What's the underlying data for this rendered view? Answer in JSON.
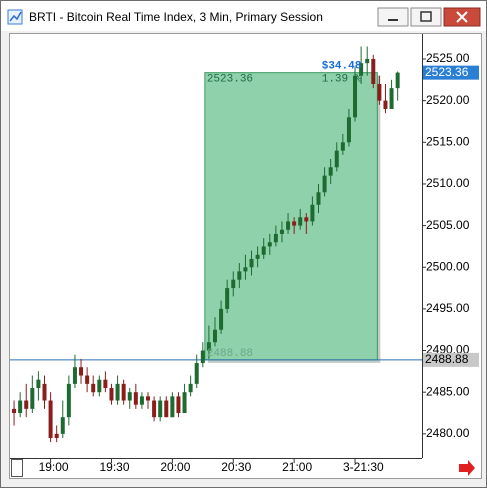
{
  "window": {
    "title": "BRTI - Bitcoin Real Time Index, 3 Min, Primary Session"
  },
  "chart_data": {
    "type": "candlestick",
    "candles": {
      "x": [
        1122,
        1125,
        1128,
        1131,
        1134,
        1137,
        1140,
        1143,
        1146,
        1149,
        1152,
        1155,
        1158,
        1161,
        1164,
        1167,
        1170,
        1173,
        1176,
        1179,
        1182,
        1185,
        1188,
        1191,
        1194,
        1197,
        1200,
        1203,
        1206,
        1209,
        1212,
        1215,
        1218,
        1221,
        1224,
        1227,
        1230,
        1233,
        1236,
        1239,
        1242,
        1245,
        1248,
        1251,
        1254,
        1257,
        1260,
        1263,
        1266,
        1269,
        1272,
        1275,
        1278,
        1281,
        1284,
        1287,
        1290,
        1293,
        1296,
        1299,
        1302,
        1305,
        1308,
        1311
      ],
      "open": [
        2483,
        2482.5,
        2484,
        2483,
        2485.5,
        2486,
        2484,
        2480,
        2480,
        2482,
        2486,
        2488,
        2487,
        2486,
        2485,
        2486.5,
        2485.5,
        2484,
        2486,
        2484,
        2485,
        2483.5,
        2484.5,
        2484,
        2482,
        2484,
        2482,
        2484.5,
        2482.5,
        2485,
        2486,
        2488.5,
        2490,
        2491,
        2492.5,
        2495,
        2497.5,
        2498.5,
        2499.5,
        2500,
        2501,
        2501.5,
        2502.5,
        2503,
        2504,
        2504.5,
        2505.5,
        2505,
        2506,
        2505.5,
        2507.5,
        2509,
        2511,
        2512,
        2514,
        2515,
        2518,
        2523,
        2524.5,
        2525,
        2522,
        2520,
        2519,
        2521.5
      ],
      "high": [
        2484,
        2485,
        2486,
        2487,
        2487.5,
        2487,
        2485,
        2481,
        2484,
        2487,
        2489.5,
        2489,
        2488,
        2487,
        2487,
        2487.5,
        2486,
        2487,
        2486.5,
        2485.5,
        2486,
        2485,
        2485,
        2484.5,
        2484.5,
        2484.5,
        2485,
        2485,
        2486,
        2487,
        2489.5,
        2491,
        2493,
        2494,
        2496,
        2498.5,
        2499.5,
        2500.5,
        2501.5,
        2502,
        2502.5,
        2503.5,
        2504,
        2505,
        2505.5,
        2506.5,
        2506,
        2507,
        2506.5,
        2508.5,
        2510,
        2512,
        2513,
        2515,
        2516,
        2519,
        2524,
        2526.5,
        2526.5,
        2525.5,
        2523,
        2522,
        2522.5,
        2523.5
      ],
      "low": [
        2481,
        2482,
        2482,
        2482.5,
        2484,
        2483,
        2479,
        2479,
        2479.5,
        2481,
        2485.5,
        2486,
        2485,
        2484.5,
        2484.5,
        2485,
        2483.5,
        2483.5,
        2483.5,
        2483,
        2483,
        2483,
        2483,
        2481.5,
        2481.5,
        2482,
        2482,
        2482,
        2482.5,
        2484.5,
        2485.5,
        2488,
        2489,
        2490.5,
        2492,
        2494.5,
        2496.5,
        2497.5,
        2498.5,
        2499,
        2500,
        2501,
        2501.5,
        2502.5,
        2503,
        2504,
        2504,
        2504.5,
        2504,
        2505,
        2506.5,
        2508.5,
        2510,
        2511.5,
        2513.5,
        2514.5,
        2517.5,
        2522,
        2523,
        2521.5,
        2519.5,
        2518.5,
        2519,
        2520
      ],
      "close": [
        2482.5,
        2484,
        2483,
        2485.5,
        2486.5,
        2484,
        2479.5,
        2479.5,
        2482,
        2486,
        2488,
        2487,
        2486,
        2485,
        2486.5,
        2485.5,
        2484,
        2486,
        2484,
        2485,
        2483.5,
        2484.5,
        2484,
        2482,
        2484,
        2482,
        2484.5,
        2482.5,
        2485,
        2486,
        2488.5,
        2490,
        2491,
        2492.5,
        2495,
        2497.5,
        2498.5,
        2499.5,
        2500,
        2501,
        2501.5,
        2502.5,
        2503,
        2504,
        2504.5,
        2505.5,
        2505,
        2506,
        2505.5,
        2507.5,
        2509,
        2511,
        2512,
        2514,
        2515,
        2518,
        2523,
        2524.5,
        2525,
        2522,
        2520,
        2519,
        2521.5,
        2523.36
      ]
    },
    "up_color": "#1d6b30",
    "down_color": "#8c1d1d",
    "xlim": [
      1120,
      1323
    ],
    "xticks": [
      {
        "value": 1140,
        "label": "19:00"
      },
      {
        "value": 1170,
        "label": "19:30"
      },
      {
        "value": 1200,
        "label": "20:00"
      },
      {
        "value": 1230,
        "label": "20:30"
      },
      {
        "value": 1260,
        "label": "21:00"
      },
      {
        "value": 1290,
        "label": "3-21:30"
      }
    ],
    "ylim": [
      2477.1,
      2528.0
    ],
    "yticks": [
      {
        "value": 2480,
        "label": "2480.00"
      },
      {
        "value": 2485,
        "label": "2485.00"
      },
      {
        "value": 2490,
        "label": "2490.00"
      },
      {
        "value": 2495,
        "label": "2495.00"
      },
      {
        "value": 2500,
        "label": "2500.00"
      },
      {
        "value": 2505,
        "label": "2505.00"
      },
      {
        "value": 2510,
        "label": "2510.00"
      },
      {
        "value": 2515,
        "label": "2515.00"
      },
      {
        "value": 2520,
        "label": "2520.00"
      },
      {
        "value": 2525,
        "label": "2525.00"
      }
    ],
    "measure": {
      "x": [
        1216,
        1301
      ],
      "y": [
        2488.88,
        2523.36
      ],
      "change_label": "$34.48",
      "pct_label": "1.39 %"
    }
  }
}
